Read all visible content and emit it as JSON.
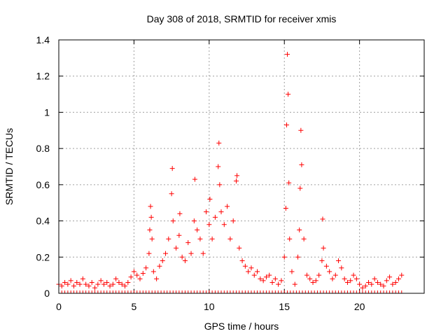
{
  "chart_data": {
    "type": "scatter",
    "title": "Day 308 of 2018, SRMTID for receiver xmis",
    "xlabel": "GPS time / hours",
    "ylabel": "SRMTID / TECUs",
    "xlim": [
      0,
      24.3
    ],
    "ylim": [
      0,
      1.4
    ],
    "x_ticks": [
      0,
      5,
      10,
      15,
      20
    ],
    "y_ticks": [
      0,
      0.2,
      0.4,
      0.6,
      0.8,
      1,
      1.2,
      1.4
    ],
    "x_tick_labels": [
      "0",
      "5",
      "10",
      "15",
      "20"
    ],
    "y_tick_labels": [
      "0",
      "0.2",
      "0.4",
      "0.6",
      "0.8",
      "1",
      "1.2",
      "1.4"
    ],
    "grid": true,
    "marker": "+",
    "series": [
      {
        "name": "SRMTID",
        "color": "#ff0000",
        "x": [
          0.0,
          0.2,
          0.4,
          0.6,
          0.8,
          1.0,
          1.2,
          1.4,
          1.6,
          1.8,
          2.0,
          2.2,
          2.4,
          2.6,
          2.8,
          3.0,
          3.2,
          3.4,
          3.6,
          3.8,
          4.0,
          4.2,
          4.4,
          4.6,
          4.8,
          5.0,
          5.2,
          5.4,
          5.6,
          5.8,
          6.0,
          6.05,
          6.1,
          6.15,
          6.2,
          6.3,
          6.5,
          6.7,
          6.9,
          7.1,
          7.3,
          7.5,
          7.55,
          7.6,
          7.8,
          8.0,
          8.05,
          8.2,
          8.4,
          8.6,
          8.8,
          9.0,
          9.05,
          9.2,
          9.4,
          9.6,
          9.8,
          10.0,
          10.05,
          10.2,
          10.4,
          10.6,
          10.65,
          10.7,
          10.8,
          11.0,
          11.2,
          11.4,
          11.6,
          11.8,
          11.85,
          12.0,
          12.2,
          12.4,
          12.6,
          12.8,
          13.0,
          13.2,
          13.4,
          13.6,
          13.8,
          14.0,
          14.2,
          14.4,
          14.6,
          14.8,
          15.0,
          15.1,
          15.15,
          15.2,
          15.25,
          15.3,
          15.35,
          15.5,
          15.7,
          15.9,
          16.0,
          16.05,
          16.1,
          16.15,
          16.3,
          16.5,
          16.7,
          16.9,
          17.1,
          17.3,
          17.5,
          17.55,
          17.6,
          17.8,
          18.0,
          18.2,
          18.4,
          18.6,
          18.8,
          19.0,
          19.2,
          19.4,
          19.6,
          19.8,
          20.0,
          20.2,
          20.4,
          20.6,
          20.8,
          21.0,
          21.2,
          21.4,
          21.6,
          21.8,
          22.0,
          22.2,
          22.4,
          22.6,
          22.8
        ],
        "y": [
          0.05,
          0.04,
          0.06,
          0.05,
          0.07,
          0.04,
          0.06,
          0.05,
          0.08,
          0.05,
          0.04,
          0.06,
          0.03,
          0.05,
          0.07,
          0.05,
          0.06,
          0.04,
          0.05,
          0.08,
          0.06,
          0.05,
          0.04,
          0.06,
          0.09,
          0.12,
          0.1,
          0.08,
          0.11,
          0.14,
          0.22,
          0.35,
          0.48,
          0.42,
          0.3,
          0.12,
          0.08,
          0.15,
          0.18,
          0.22,
          0.3,
          0.55,
          0.69,
          0.4,
          0.25,
          0.32,
          0.44,
          0.2,
          0.18,
          0.28,
          0.22,
          0.4,
          0.63,
          0.35,
          0.3,
          0.22,
          0.45,
          0.38,
          0.52,
          0.3,
          0.42,
          0.7,
          0.83,
          0.6,
          0.45,
          0.38,
          0.48,
          0.3,
          0.4,
          0.62,
          0.65,
          0.25,
          0.18,
          0.15,
          0.12,
          0.14,
          0.1,
          0.12,
          0.08,
          0.07,
          0.09,
          0.1,
          0.06,
          0.08,
          0.05,
          0.07,
          0.2,
          0.47,
          0.93,
          1.32,
          1.1,
          0.61,
          0.3,
          0.12,
          0.05,
          0.2,
          0.35,
          0.58,
          0.9,
          0.71,
          0.3,
          0.1,
          0.08,
          0.06,
          0.07,
          0.1,
          0.18,
          0.41,
          0.25,
          0.15,
          0.12,
          0.08,
          0.1,
          0.18,
          0.14,
          0.08,
          0.06,
          0.07,
          0.1,
          0.08,
          0.05,
          0.03,
          0.04,
          0.06,
          0.05,
          0.08,
          0.06,
          0.05,
          0.04,
          0.07,
          0.09,
          0.05,
          0.06,
          0.08,
          0.1
        ]
      }
    ]
  }
}
